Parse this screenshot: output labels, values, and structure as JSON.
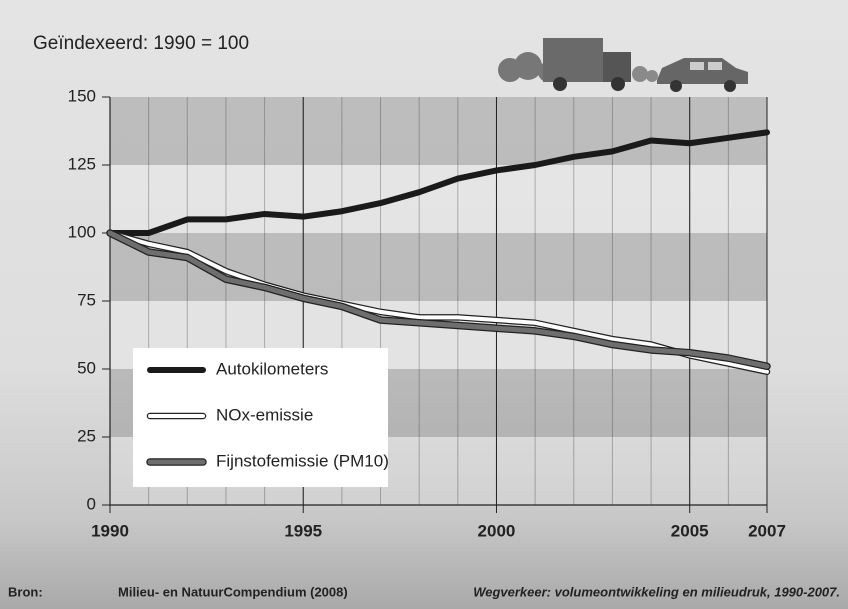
{
  "chart_data": {
    "type": "line",
    "title": "Geïndexeerd: 1990 = 100",
    "x": [
      1990,
      1991,
      1992,
      1993,
      1994,
      1995,
      1996,
      1997,
      1998,
      1999,
      2000,
      2001,
      2002,
      2003,
      2004,
      2005,
      2006,
      2007
    ],
    "series": [
      {
        "name": "Autokilometers",
        "color": "#1a1a1a",
        "values": [
          100,
          100,
          105,
          105,
          107,
          106,
          108,
          111,
          115,
          120,
          123,
          125,
          128,
          130,
          134,
          133,
          135,
          137
        ]
      },
      {
        "name": "NOx-emissie",
        "color": "#ffffff",
        "values": [
          100,
          96,
          93,
          86,
          81,
          77,
          74,
          71,
          69,
          69,
          68,
          67,
          64,
          61,
          59,
          55,
          52,
          49
        ]
      },
      {
        "name": "Fijnstofemissie (PM10)",
        "color": "#6e6e6e",
        "values": [
          100,
          93,
          91,
          83,
          80,
          76,
          73,
          68,
          67,
          66,
          65,
          64,
          62,
          59,
          57,
          56,
          54,
          51
        ]
      }
    ],
    "xlim": [
      1990,
      2007
    ],
    "xticks": [
      1990,
      1995,
      2000,
      2005,
      2007
    ],
    "ylim": [
      0,
      150
    ],
    "yticks": [
      0,
      25,
      50,
      75,
      100,
      125,
      150
    ],
    "grid": true,
    "source_label": "Bron:",
    "source": "Milieu- en NatuurCompendium (2008)",
    "source_title": "Wegverkeer: volumeontwikkeling en milieudruk, 1990-2007."
  }
}
